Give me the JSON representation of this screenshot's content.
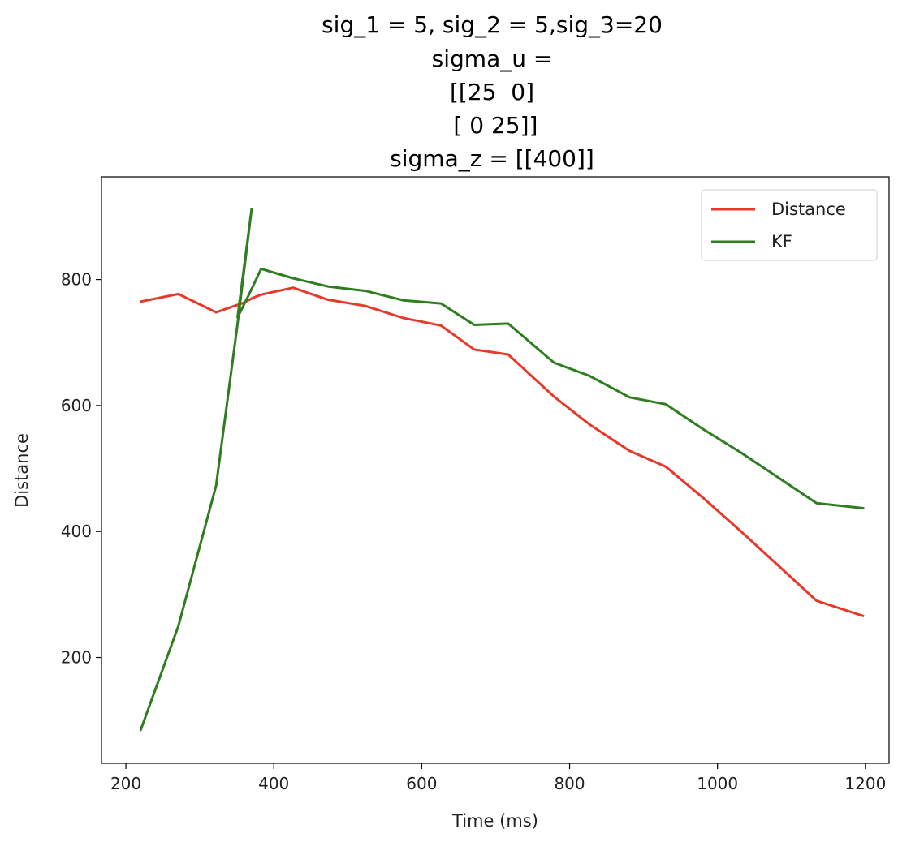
{
  "chart_data": {
    "type": "line",
    "title_lines": [
      "sig_1 = 5, sig_2 = 5,sig_3=20",
      "sigma_u =",
      "[[25  0]",
      " [ 0 25]]",
      "sigma_z = [[400]]"
    ],
    "xlabel": "Time (ms)",
    "ylabel": "Distance",
    "xlim": [
      167,
      1232
    ],
    "ylim": [
      32,
      963
    ],
    "xticks": [
      200,
      400,
      600,
      800,
      1000,
      1200
    ],
    "yticks": [
      200,
      400,
      600,
      800
    ],
    "grid": false,
    "legend_position": "top-right",
    "series": [
      {
        "name": "Distance",
        "color": "#e8382a",
        "x": [
          220,
          271,
          322,
          359,
          372,
          383,
          426,
          473,
          524,
          575,
          626,
          671,
          717,
          779,
          827,
          881,
          930,
          981,
          1032,
          1083,
          1134,
          1197
        ],
        "y": [
          765,
          777,
          748,
          763,
          771,
          776,
          787,
          768,
          758,
          739,
          727,
          689,
          681,
          614,
          570,
          528,
          503,
          453,
          400,
          345,
          290,
          266
        ]
      },
      {
        "name": "KF",
        "color": "#2e7d1f",
        "x": [
          220,
          271,
          322,
          351,
          370,
          351,
          366,
          383,
          426,
          473,
          524,
          575,
          626,
          671,
          717,
          779,
          827,
          881,
          930,
          981,
          1032,
          1083,
          1134,
          1197
        ],
        "y": [
          85,
          250,
          473,
          730,
          912,
          740,
          775,
          817,
          802,
          789,
          782,
          767,
          762,
          728,
          730,
          668,
          647,
          613,
          602,
          562,
          525,
          485,
          445,
          437
        ]
      }
    ]
  }
}
